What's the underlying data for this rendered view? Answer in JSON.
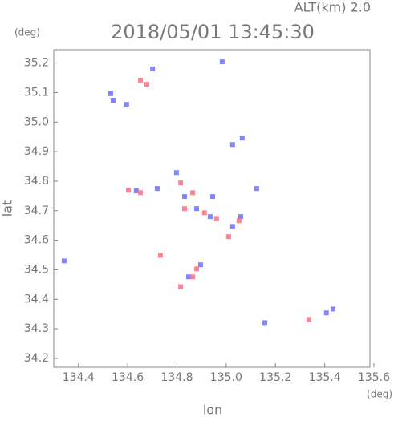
{
  "chart_data": {
    "type": "scatter",
    "title": "2018/05/01 13:45:30",
    "altitude_label": "ALT(km) 2.0",
    "y_unit": "(deg)",
    "x_unit": "(deg)",
    "x_label": "lon",
    "y_label": "lat",
    "xlim": [
      134.3,
      135.6
    ],
    "ylim": [
      34.17,
      35.245
    ],
    "xticks": [
      134.4,
      134.6,
      134.8,
      {
        "value": 135.0,
        "label": "135.0"
      },
      135.2,
      135.4,
      135.6
    ],
    "yticks": [
      34.2,
      34.3,
      34.4,
      34.5,
      34.6,
      34.7,
      34.8,
      34.9,
      {
        "value": 35.0,
        "label": "35.0"
      },
      35.1,
      35.2
    ],
    "series": [
      {
        "color": "#6f6fff",
        "x": [
          134.984,
          134.531,
          134.541,
          134.596,
          134.701,
          134.72,
          134.635,
          134.798,
          134.831,
          134.88,
          134.935,
          135.026,
          135.059,
          134.896,
          134.847,
          135.157,
          135.434,
          135.407,
          134.342,
          134.945,
          135.124,
          135.026,
          135.065
        ],
        "y": [
          35.204,
          35.096,
          35.074,
          35.06,
          35.18,
          34.775,
          34.767,
          34.829,
          34.748,
          34.707,
          34.68,
          34.647,
          34.68,
          34.517,
          34.476,
          34.321,
          34.367,
          34.354,
          34.53,
          34.748,
          34.775,
          34.924,
          34.946
        ]
      },
      {
        "color": "#ff6f7f",
        "x": [
          134.652,
          134.678,
          134.603,
          134.652,
          134.815,
          134.864,
          134.912,
          134.961,
          135.052,
          135.01,
          134.88,
          134.864,
          134.815,
          135.336,
          134.733,
          134.831
        ],
        "y": [
          35.142,
          35.128,
          34.769,
          34.761,
          34.794,
          34.761,
          34.693,
          34.674,
          34.666,
          34.612,
          34.503,
          34.476,
          34.443,
          34.332,
          34.549,
          34.707
        ]
      }
    ]
  }
}
